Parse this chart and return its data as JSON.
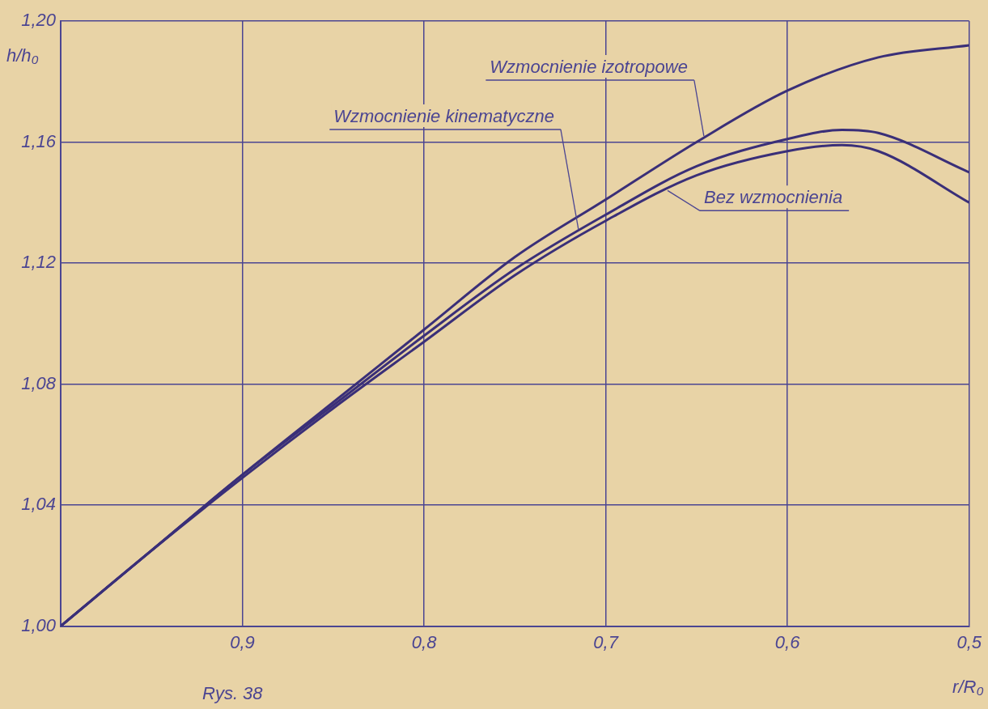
{
  "chart_data": {
    "type": "line",
    "xlabel": "r/R₀",
    "ylabel": "h/h₀",
    "xlim": [
      1.0,
      0.5
    ],
    "ylim": [
      1.0,
      1.2
    ],
    "xticks": [
      {
        "value": 0.9,
        "label": "0,9"
      },
      {
        "value": 0.8,
        "label": "0,8"
      },
      {
        "value": 0.7,
        "label": "0,7"
      },
      {
        "value": 0.6,
        "label": "0,6"
      },
      {
        "value": 0.5,
        "label": "0,5"
      }
    ],
    "yticks": [
      {
        "value": 1.0,
        "label": "1,00"
      },
      {
        "value": 1.04,
        "label": "1,04"
      },
      {
        "value": 1.08,
        "label": "1,08"
      },
      {
        "value": 1.12,
        "label": "1,12"
      },
      {
        "value": 1.16,
        "label": "1,16"
      },
      {
        "value": 1.2,
        "label": "1,20"
      }
    ],
    "grid": true,
    "legend": false,
    "marker": "none",
    "line_style": "solid",
    "series": [
      {
        "color": "#3a2f78",
        "x": [
          1.0,
          0.95,
          0.9,
          0.85,
          0.8,
          0.75,
          0.7,
          0.65,
          0.6,
          0.55,
          0.5
        ],
        "values": [
          1.0,
          1.025,
          1.05,
          1.074,
          1.098,
          1.122,
          1.141,
          1.16,
          1.177,
          1.188,
          1.192
        ]
      },
      {
        "color": "#3a2f78",
        "x": [
          1.0,
          0.95,
          0.9,
          0.85,
          0.8,
          0.75,
          0.7,
          0.65,
          0.6,
          0.57,
          0.55,
          0.5
        ],
        "values": [
          1.0,
          1.025,
          1.05,
          1.073,
          1.096,
          1.118,
          1.136,
          1.152,
          1.161,
          1.164,
          1.163,
          1.15
        ]
      },
      {
        "color": "#3a2f78",
        "x": [
          1.0,
          0.95,
          0.9,
          0.85,
          0.8,
          0.75,
          0.7,
          0.65,
          0.6,
          0.57,
          0.55,
          0.5
        ],
        "values": [
          1.0,
          1.025,
          1.049,
          1.072,
          1.094,
          1.116,
          1.134,
          1.149,
          1.157,
          1.159,
          1.157,
          1.14
        ]
      }
    ],
    "annotations": [
      {
        "text": "Wzmocnienie izotropowe",
        "x": 0.646,
        "y": 1.162
      },
      {
        "text": "Wzmocnienie kinematyczne",
        "x": 0.715,
        "y": 1.131
      },
      {
        "text": "Bez wzmocnienia",
        "x": 0.666,
        "y": 1.144
      },
      "Rys. 38"
    ]
  }
}
